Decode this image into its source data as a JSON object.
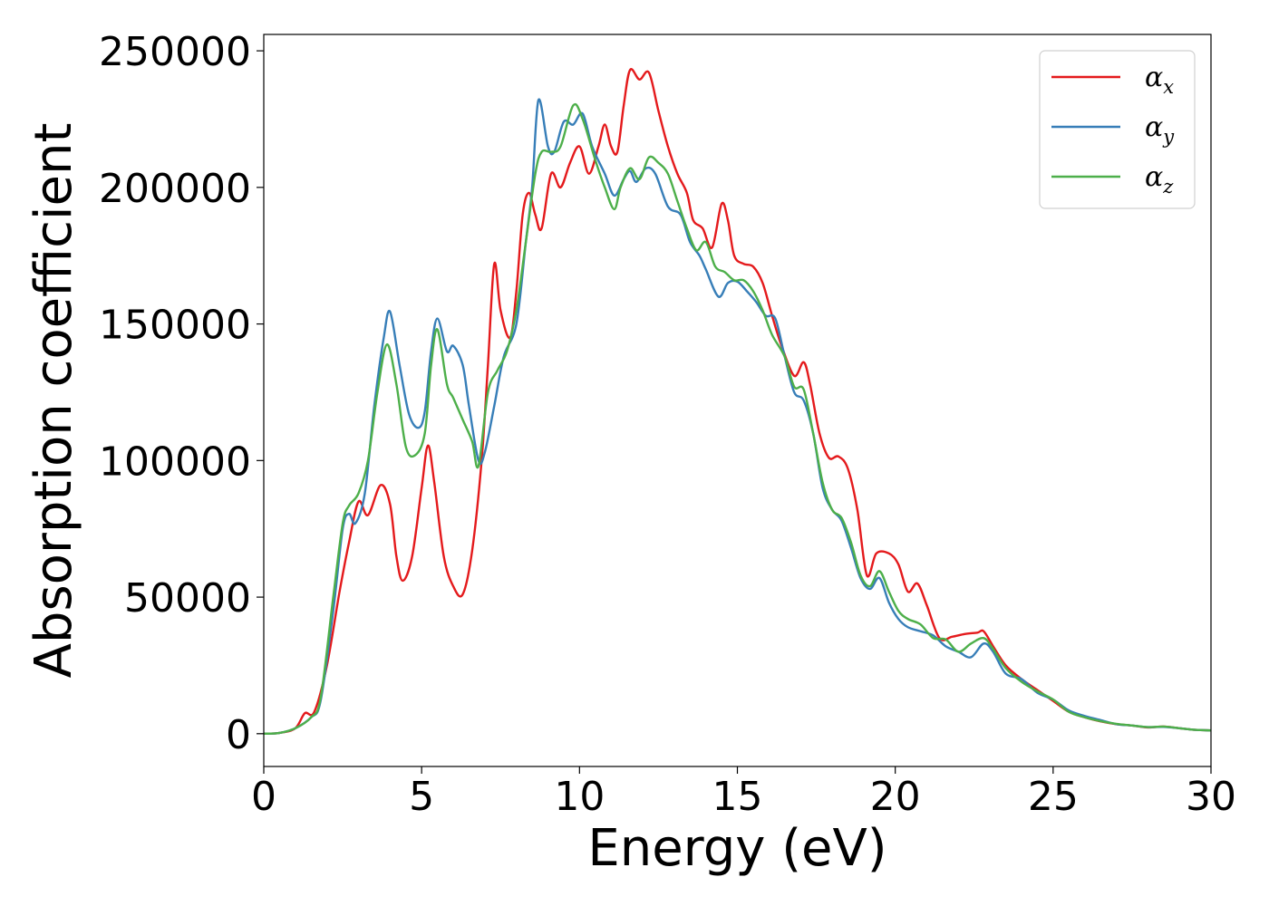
{
  "chart_data": {
    "type": "line",
    "xlabel": "Energy (eV)",
    "ylabel": "Absorption coefficient",
    "xlim": [
      0,
      30
    ],
    "ylim": [
      -12000,
      256000
    ],
    "xticks": [
      0,
      5,
      10,
      15,
      20,
      25,
      30
    ],
    "xtick_labels": [
      "0",
      "5",
      "10",
      "15",
      "20",
      "25",
      "30"
    ],
    "yticks": [
      0,
      50000,
      100000,
      150000,
      200000,
      250000
    ],
    "ytick_labels": [
      "0",
      "50000",
      "100000",
      "150000",
      "200000",
      "250000"
    ],
    "grid": false,
    "legend_position": "top-right",
    "series": [
      {
        "name": "α",
        "subscript": "x",
        "color": "#e41a1c",
        "points": [
          [
            0,
            0
          ],
          [
            0.5,
            300
          ],
          [
            1.0,
            2000
          ],
          [
            1.3,
            7500
          ],
          [
            1.6,
            8000
          ],
          [
            2.0,
            25000
          ],
          [
            2.4,
            52000
          ],
          [
            2.7,
            70000
          ],
          [
            3.0,
            85000
          ],
          [
            3.3,
            80000
          ],
          [
            3.7,
            91000
          ],
          [
            4.0,
            84000
          ],
          [
            4.2,
            65000
          ],
          [
            4.4,
            56000
          ],
          [
            4.7,
            65000
          ],
          [
            5.0,
            90000
          ],
          [
            5.2,
            105500
          ],
          [
            5.4,
            92000
          ],
          [
            5.7,
            65000
          ],
          [
            6.0,
            54000
          ],
          [
            6.3,
            51000
          ],
          [
            6.6,
            67000
          ],
          [
            6.9,
            100000
          ],
          [
            7.1,
            135000
          ],
          [
            7.3,
            172000
          ],
          [
            7.5,
            155000
          ],
          [
            7.8,
            145000
          ],
          [
            8.0,
            162000
          ],
          [
            8.2,
            190000
          ],
          [
            8.4,
            198000
          ],
          [
            8.6,
            190000
          ],
          [
            8.8,
            185000
          ],
          [
            9.1,
            205000
          ],
          [
            9.4,
            200000
          ],
          [
            9.7,
            209000
          ],
          [
            10.0,
            215000
          ],
          [
            10.3,
            205000
          ],
          [
            10.6,
            215000
          ],
          [
            10.8,
            223000
          ],
          [
            11.0,
            215000
          ],
          [
            11.2,
            213000
          ],
          [
            11.4,
            230000
          ],
          [
            11.6,
            243000
          ],
          [
            11.9,
            239500
          ],
          [
            12.2,
            242000
          ],
          [
            12.5,
            228000
          ],
          [
            12.8,
            215000
          ],
          [
            13.1,
            205000
          ],
          [
            13.4,
            198000
          ],
          [
            13.6,
            188000
          ],
          [
            13.9,
            185000
          ],
          [
            14.2,
            178000
          ],
          [
            14.5,
            194000
          ],
          [
            14.7,
            188000
          ],
          [
            14.9,
            175000
          ],
          [
            15.2,
            172000
          ],
          [
            15.5,
            171000
          ],
          [
            15.8,
            165000
          ],
          [
            16.1,
            153000
          ],
          [
            16.4,
            142000
          ],
          [
            16.8,
            131000
          ],
          [
            17.1,
            136000
          ],
          [
            17.3,
            128000
          ],
          [
            17.6,
            110000
          ],
          [
            17.9,
            101000
          ],
          [
            18.2,
            101500
          ],
          [
            18.5,
            97000
          ],
          [
            18.8,
            82000
          ],
          [
            19.1,
            58000
          ],
          [
            19.4,
            66000
          ],
          [
            19.8,
            66000
          ],
          [
            20.1,
            62000
          ],
          [
            20.4,
            52000
          ],
          [
            20.7,
            55000
          ],
          [
            21.0,
            47000
          ],
          [
            21.4,
            35000
          ],
          [
            21.8,
            35500
          ],
          [
            22.2,
            36500
          ],
          [
            22.6,
            37000
          ],
          [
            22.8,
            37500
          ],
          [
            23.1,
            32000
          ],
          [
            23.5,
            25000
          ],
          [
            24.0,
            20000
          ],
          [
            24.5,
            16000
          ],
          [
            25.0,
            12000
          ],
          [
            25.5,
            8000
          ],
          [
            26.0,
            6000
          ],
          [
            26.5,
            4500
          ],
          [
            27.0,
            3500
          ],
          [
            27.5,
            3000
          ],
          [
            28.0,
            2300
          ],
          [
            28.5,
            2600
          ],
          [
            29.0,
            2000
          ],
          [
            29.5,
            1400
          ],
          [
            30.0,
            1200
          ]
        ]
      },
      {
        "name": "α",
        "subscript": "y",
        "color": "#377eb8",
        "points": [
          [
            0,
            0
          ],
          [
            0.5,
            300
          ],
          [
            1.0,
            2000
          ],
          [
            1.5,
            6000
          ],
          [
            1.8,
            12000
          ],
          [
            2.2,
            45000
          ],
          [
            2.5,
            75000
          ],
          [
            2.7,
            80500
          ],
          [
            2.9,
            77000
          ],
          [
            3.2,
            88000
          ],
          [
            3.5,
            120000
          ],
          [
            3.8,
            145000
          ],
          [
            4.0,
            154500
          ],
          [
            4.3,
            135000
          ],
          [
            4.6,
            117000
          ],
          [
            4.9,
            112000
          ],
          [
            5.1,
            118000
          ],
          [
            5.3,
            140000
          ],
          [
            5.5,
            152000
          ],
          [
            5.8,
            140000
          ],
          [
            6.0,
            142000
          ],
          [
            6.3,
            135000
          ],
          [
            6.5,
            120000
          ],
          [
            6.8,
            100000
          ],
          [
            7.0,
            103000
          ],
          [
            7.3,
            120000
          ],
          [
            7.6,
            138000
          ],
          [
            8.0,
            150000
          ],
          [
            8.3,
            180000
          ],
          [
            8.5,
            200000
          ],
          [
            8.7,
            232000
          ],
          [
            9.0,
            215000
          ],
          [
            9.2,
            213000
          ],
          [
            9.5,
            224000
          ],
          [
            9.8,
            223000
          ],
          [
            10.1,
            227000
          ],
          [
            10.4,
            215000
          ],
          [
            10.8,
            205000
          ],
          [
            11.1,
            197000
          ],
          [
            11.4,
            203000
          ],
          [
            11.6,
            206000
          ],
          [
            11.8,
            202000
          ],
          [
            12.1,
            207000
          ],
          [
            12.4,
            205000
          ],
          [
            12.8,
            193000
          ],
          [
            13.2,
            190000
          ],
          [
            13.5,
            180000
          ],
          [
            13.8,
            175000
          ],
          [
            14.0,
            170000
          ],
          [
            14.4,
            160000
          ],
          [
            14.7,
            165000
          ],
          [
            15.0,
            165500
          ],
          [
            15.3,
            162000
          ],
          [
            15.6,
            158000
          ],
          [
            15.9,
            153000
          ],
          [
            16.2,
            152000
          ],
          [
            16.5,
            138000
          ],
          [
            16.8,
            125000
          ],
          [
            17.1,
            122000
          ],
          [
            17.4,
            110000
          ],
          [
            17.7,
            90000
          ],
          [
            18.0,
            82000
          ],
          [
            18.3,
            78000
          ],
          [
            18.6,
            68000
          ],
          [
            18.9,
            57000
          ],
          [
            19.2,
            53000
          ],
          [
            19.5,
            57000
          ],
          [
            19.8,
            48000
          ],
          [
            20.1,
            42000
          ],
          [
            20.4,
            39000
          ],
          [
            20.8,
            37500
          ],
          [
            21.2,
            36000
          ],
          [
            21.6,
            32000
          ],
          [
            22.0,
            30000
          ],
          [
            22.4,
            28000
          ],
          [
            22.8,
            33000
          ],
          [
            23.1,
            30000
          ],
          [
            23.5,
            22000
          ],
          [
            24.0,
            20000
          ],
          [
            24.5,
            15000
          ],
          [
            25.0,
            12500
          ],
          [
            25.5,
            8500
          ],
          [
            26.0,
            6500
          ],
          [
            26.5,
            5000
          ],
          [
            27.0,
            3500
          ],
          [
            27.5,
            3000
          ],
          [
            28.0,
            2400
          ],
          [
            28.5,
            2500
          ],
          [
            29.0,
            2000
          ],
          [
            29.5,
            1400
          ],
          [
            30.0,
            1200
          ]
        ]
      },
      {
        "name": "α",
        "subscript": "z",
        "color": "#4daf4a",
        "points": [
          [
            0,
            0
          ],
          [
            0.5,
            300
          ],
          [
            1.0,
            2000
          ],
          [
            1.5,
            6000
          ],
          [
            1.8,
            13000
          ],
          [
            2.2,
            50000
          ],
          [
            2.5,
            77000
          ],
          [
            2.7,
            83500
          ],
          [
            3.0,
            88000
          ],
          [
            3.3,
            100000
          ],
          [
            3.6,
            125000
          ],
          [
            3.9,
            142500
          ],
          [
            4.2,
            128000
          ],
          [
            4.5,
            105000
          ],
          [
            4.8,
            102000
          ],
          [
            5.1,
            110000
          ],
          [
            5.3,
            135000
          ],
          [
            5.5,
            148000
          ],
          [
            5.8,
            128000
          ],
          [
            6.0,
            123000
          ],
          [
            6.3,
            115000
          ],
          [
            6.6,
            107000
          ],
          [
            6.8,
            98000
          ],
          [
            7.1,
            125000
          ],
          [
            7.4,
            133000
          ],
          [
            7.7,
            140000
          ],
          [
            8.0,
            155000
          ],
          [
            8.3,
            180000
          ],
          [
            8.6,
            205000
          ],
          [
            8.8,
            213000
          ],
          [
            9.1,
            213000
          ],
          [
            9.4,
            215000
          ],
          [
            9.8,
            230000
          ],
          [
            10.1,
            225000
          ],
          [
            10.5,
            210000
          ],
          [
            10.8,
            200000
          ],
          [
            11.1,
            192000
          ],
          [
            11.3,
            200000
          ],
          [
            11.6,
            207000
          ],
          [
            11.9,
            203000
          ],
          [
            12.2,
            211000
          ],
          [
            12.5,
            209000
          ],
          [
            12.8,
            205000
          ],
          [
            13.1,
            195000
          ],
          [
            13.4,
            185000
          ],
          [
            13.7,
            177000
          ],
          [
            14.0,
            180000
          ],
          [
            14.3,
            171000
          ],
          [
            14.6,
            169000
          ],
          [
            14.9,
            166000
          ],
          [
            15.2,
            166000
          ],
          [
            15.5,
            162000
          ],
          [
            15.8,
            155000
          ],
          [
            16.1,
            146000
          ],
          [
            16.5,
            138000
          ],
          [
            16.8,
            127000
          ],
          [
            17.1,
            126000
          ],
          [
            17.4,
            110000
          ],
          [
            17.7,
            92000
          ],
          [
            18.0,
            82000
          ],
          [
            18.3,
            79000
          ],
          [
            18.6,
            70000
          ],
          [
            18.9,
            58000
          ],
          [
            19.2,
            54000
          ],
          [
            19.5,
            59500
          ],
          [
            19.8,
            52000
          ],
          [
            20.1,
            45000
          ],
          [
            20.4,
            42000
          ],
          [
            20.8,
            40000
          ],
          [
            21.2,
            35000
          ],
          [
            21.6,
            34500
          ],
          [
            22.0,
            30000
          ],
          [
            22.4,
            33000
          ],
          [
            22.8,
            35000
          ],
          [
            23.1,
            31000
          ],
          [
            23.5,
            24000
          ],
          [
            24.0,
            19000
          ],
          [
            24.5,
            15500
          ],
          [
            25.0,
            12500
          ],
          [
            25.5,
            8000
          ],
          [
            26.0,
            6000
          ],
          [
            26.5,
            4600
          ],
          [
            27.0,
            3600
          ],
          [
            27.5,
            3000
          ],
          [
            28.0,
            2400
          ],
          [
            28.5,
            2600
          ],
          [
            29.0,
            2000
          ],
          [
            29.5,
            1400
          ],
          [
            30.0,
            1200
          ]
        ]
      }
    ]
  }
}
